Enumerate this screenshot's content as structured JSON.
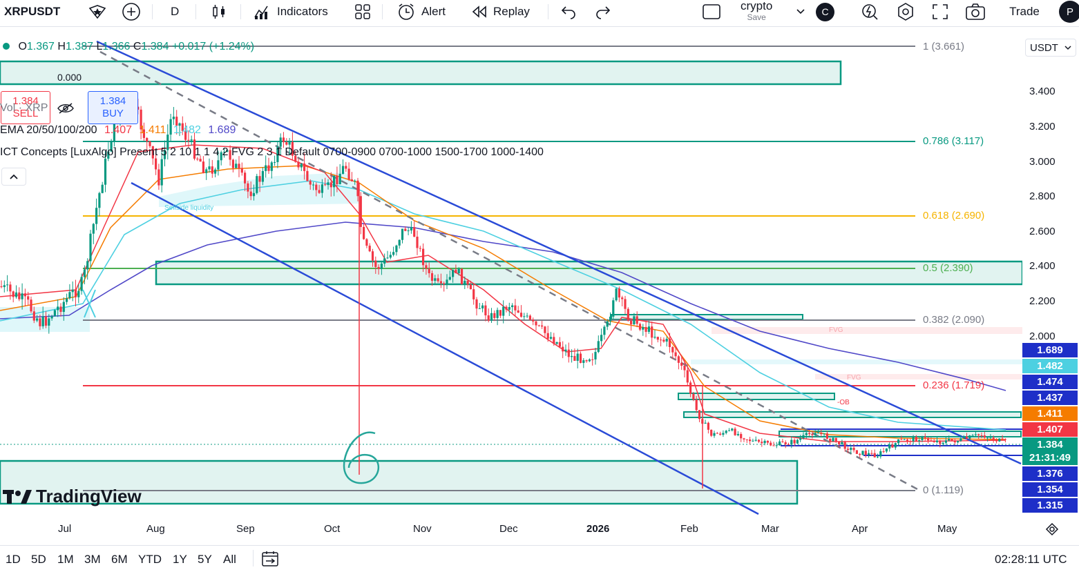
{
  "toolbar": {
    "symbol": "XRPUSDT",
    "interval": "D",
    "indicators_label": "Indicators",
    "alert_label": "Alert",
    "replay_label": "Replay",
    "layout_name": "crypto",
    "layout_save": "Save",
    "avatar_letter": "C",
    "trade_label": "Trade",
    "profile_letter": "P"
  },
  "legend": {
    "ohlc": [
      {
        "k": "O",
        "v": "1.367"
      },
      {
        "k": "H",
        "v": "1.387"
      },
      {
        "k": "L",
        "v": "1.366"
      },
      {
        "k": "C",
        "v": "1.384"
      }
    ],
    "change": "+0.017 (+1.24%)",
    "sell_price": "1.384",
    "sell_label": "SELL",
    "spread": "0.000",
    "buy_price": "1.384",
    "buy_label": "BUY",
    "vol": "Vol · XRP",
    "ema_name": "EMA 20/50/100/200",
    "ema_values": [
      "1.407",
      "1.411",
      "1.482",
      "1.689"
    ],
    "ict": "ICT Concepts [LuxAlgo] Present 5 2 10 1 1 4 2 FVG 2 3 1 Default 0700-0900 0700-1000 1500-1700 1000-1400"
  },
  "fib_levels": [
    {
      "label": "1 (3.661)",
      "color": "#787b86"
    },
    {
      "label": "0.786 (3.117)",
      "color": "#089981"
    },
    {
      "label": "0.618 (2.690)",
      "color": "#f5b400"
    },
    {
      "label": "0.5 (2.390)",
      "color": "#4caf50"
    },
    {
      "label": "0.382 (2.090)",
      "color": "#787b86"
    },
    {
      "label": "0.236 (1.719)",
      "color": "#f23645"
    },
    {
      "label": "0 (1.119)",
      "color": "#787b86"
    }
  ],
  "chart_annotations": {
    "sellside": "Sellside liquidity",
    "fvg1": "FVG",
    "fvg2": "FVG",
    "ob": "-OB",
    "handwritten": "6"
  },
  "price_axis": {
    "currency": "USDT",
    "ticks": [
      "3.400",
      "3.200",
      "3.000",
      "2.800",
      "2.600",
      "2.400",
      "2.200",
      "2.000"
    ],
    "tags": [
      {
        "v": "1.689",
        "bg": "#1e2fc8"
      },
      {
        "v": "1.482",
        "bg": "#4dd0e1"
      },
      {
        "v": "1.474",
        "bg": "#1e2fc8"
      },
      {
        "v": "1.437",
        "bg": "#1e2fc8"
      },
      {
        "v": "1.411",
        "bg": "#f57c00"
      },
      {
        "v": "1.407",
        "bg": "#f23645"
      },
      {
        "v": "1.384",
        "bg": "#089981"
      },
      {
        "v": "21:31:49",
        "bg": "#089981"
      },
      {
        "v": "1.376",
        "bg": "#1e2fc8"
      },
      {
        "v": "1.354",
        "bg": "#1e2fc8"
      },
      {
        "v": "1.315",
        "bg": "#1e2fc8"
      }
    ]
  },
  "time_axis": [
    "Jul",
    "Aug",
    "Sep",
    "Oct",
    "Nov",
    "Dec",
    "2026",
    "Feb",
    "Mar",
    "Apr",
    "May"
  ],
  "bottom_bar": {
    "ranges": [
      "1D",
      "5D",
      "1M",
      "3M",
      "6M",
      "YTD",
      "1Y",
      "5Y",
      "All"
    ],
    "clock": "02:28:11 UTC"
  },
  "brand": "TradingView"
}
